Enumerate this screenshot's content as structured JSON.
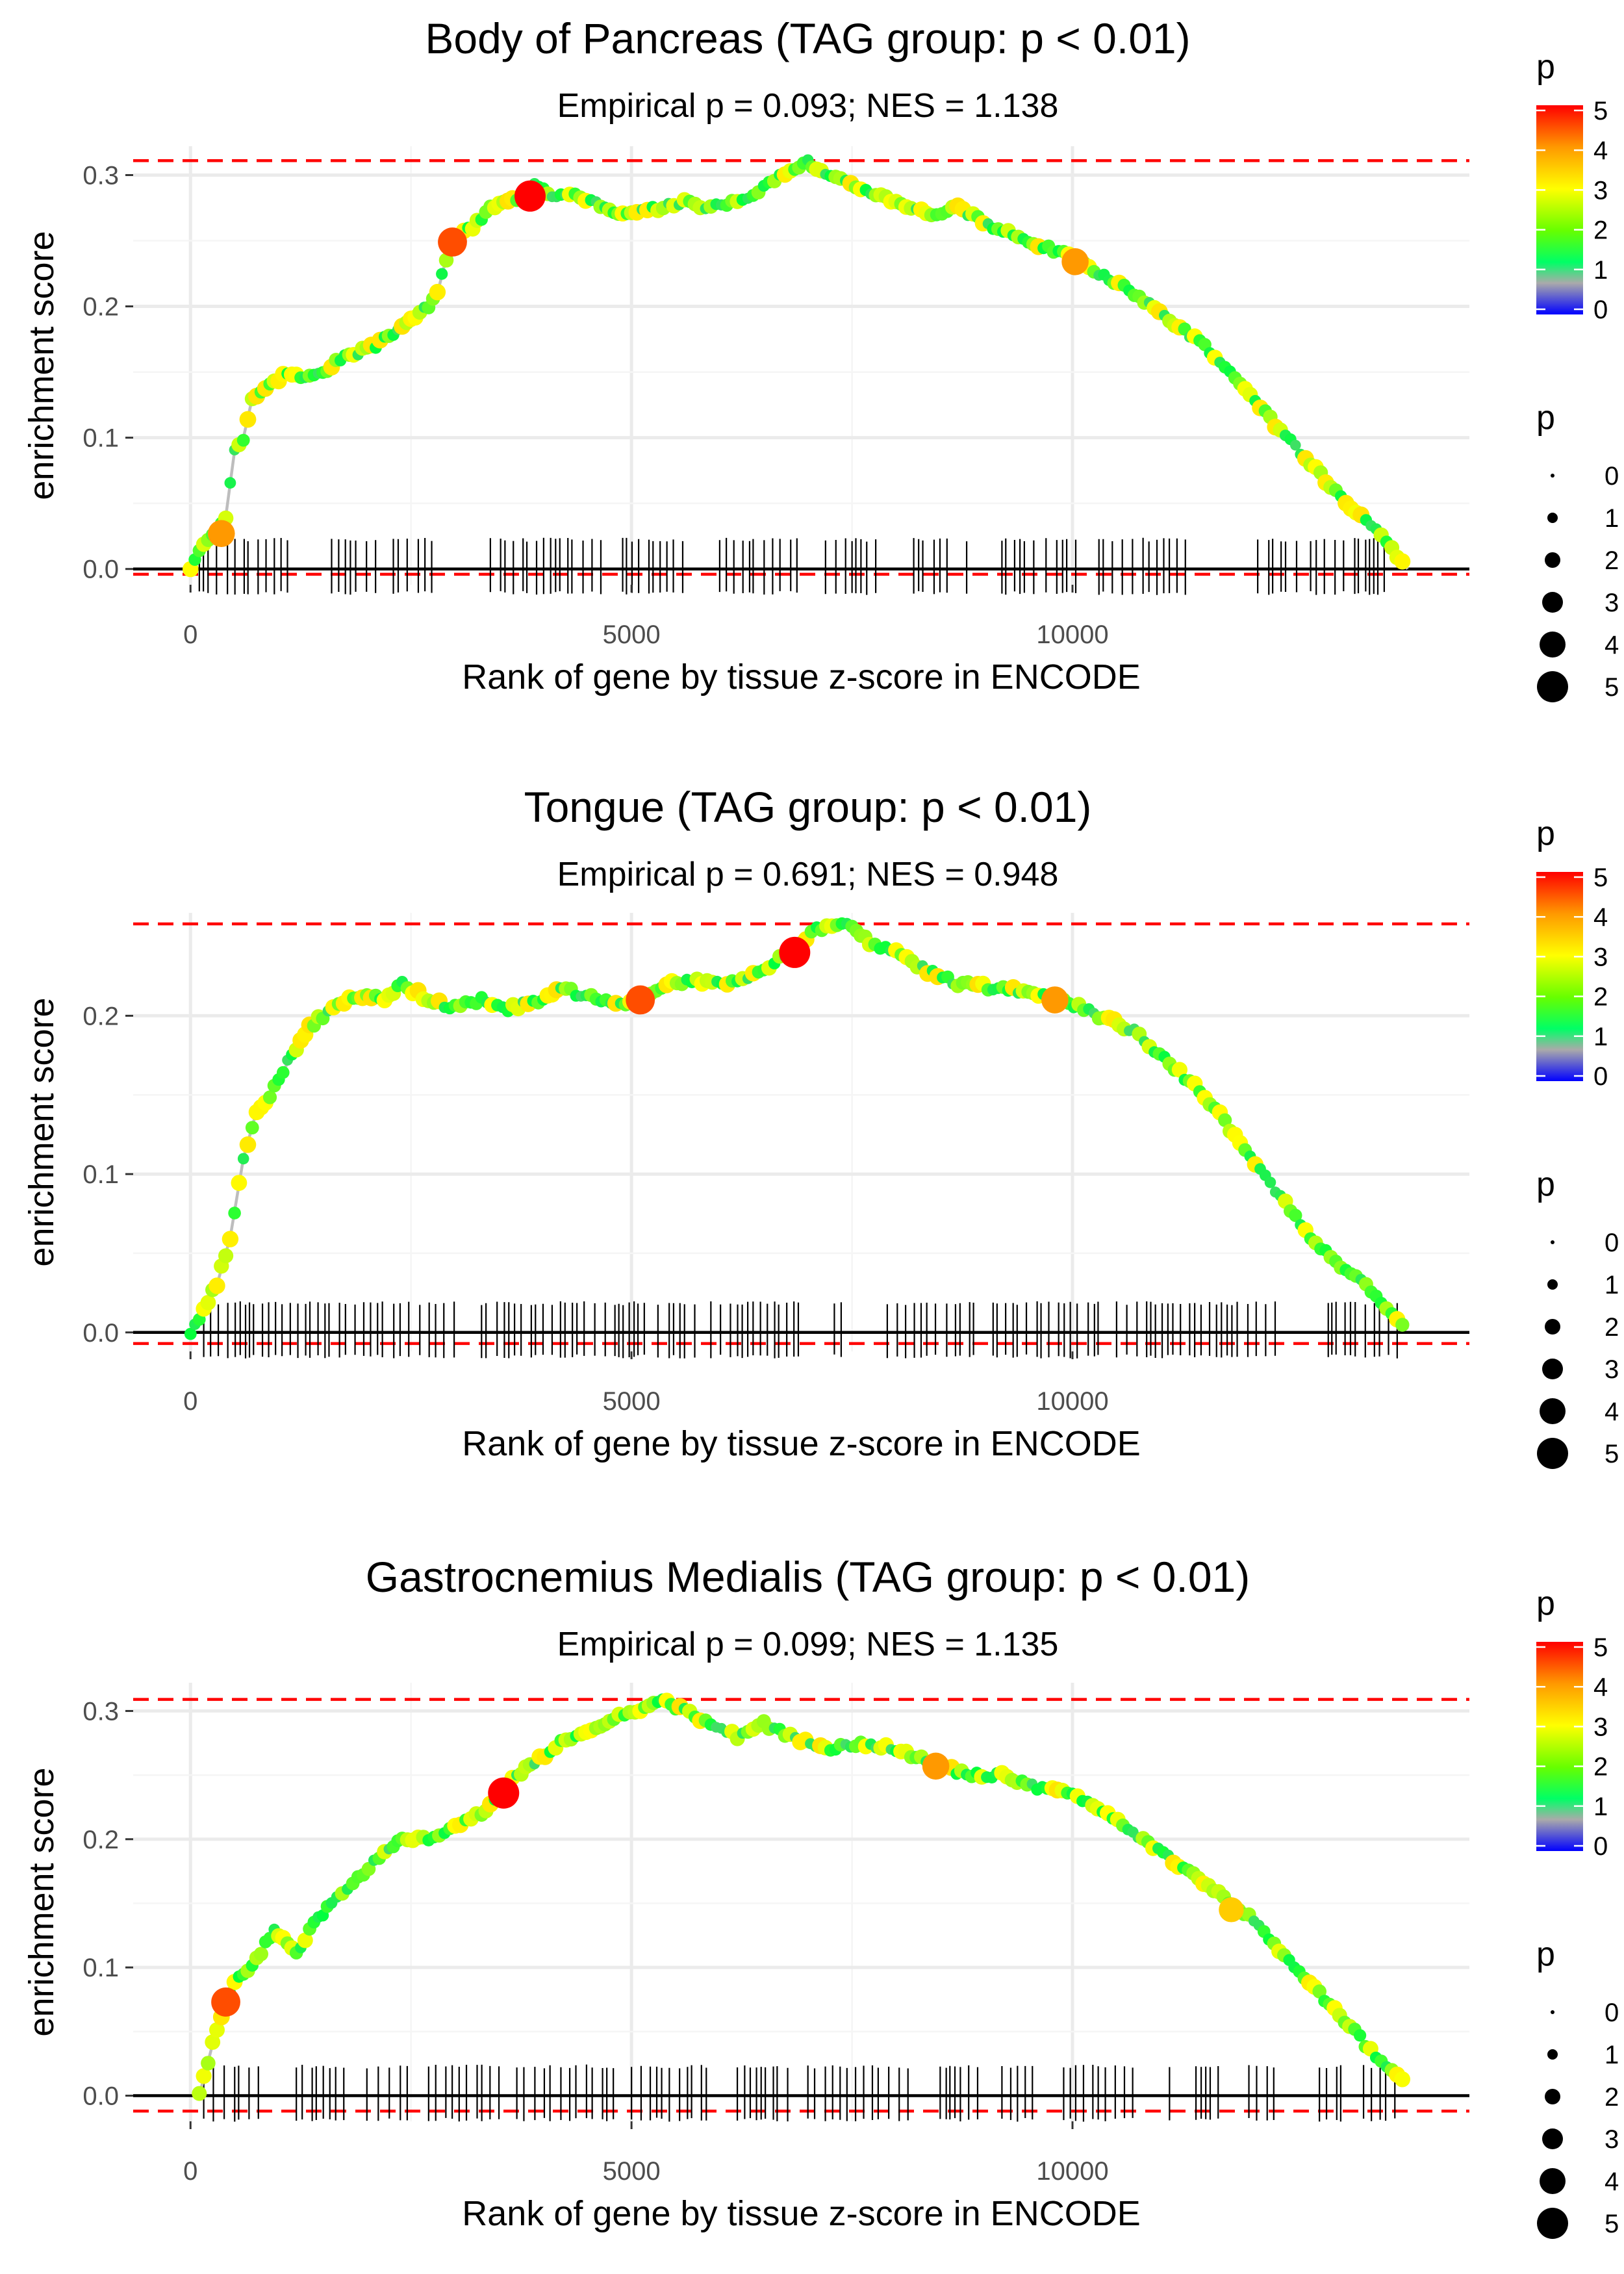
{
  "chart_data": [
    {
      "type": "line",
      "title": "Body of Pancreas (TAG group: p < 0.01)",
      "subtitle": "Empirical p = 0.093; NES = 1.138",
      "xlabel": "Rank of gene by tissue z-score in ENCODE",
      "ylabel": "enrichment score",
      "xlim": [
        -650,
        14500
      ],
      "ylim": [
        -0.012,
        0.322
      ],
      "xticks": [
        0,
        5000,
        10000
      ],
      "xtick_labels": [
        "0",
        "5000",
        "10000"
      ],
      "yticks": [
        0.0,
        0.1,
        0.2,
        0.3
      ],
      "ytick_labels": [
        "0.0",
        "0.1",
        "0.2",
        "0.3"
      ],
      "max_line": 0.311,
      "min_line": -0.004,
      "points": [
        [
          0,
          0
        ],
        [
          150,
          0.02
        ],
        [
          300,
          0.03
        ],
        [
          400,
          0.04
        ],
        [
          500,
          0.09
        ],
        [
          600,
          0.1
        ],
        [
          700,
          0.13
        ],
        [
          900,
          0.14
        ],
        [
          1100,
          0.15
        ],
        [
          1300,
          0.145
        ],
        [
          1500,
          0.15
        ],
        [
          1700,
          0.16
        ],
        [
          1900,
          0.165
        ],
        [
          2100,
          0.17
        ],
        [
          2300,
          0.18
        ],
        [
          2500,
          0.19
        ],
        [
          2700,
          0.2
        ],
        [
          2800,
          0.21
        ],
        [
          2950,
          0.25
        ],
        [
          3200,
          0.26
        ],
        [
          3400,
          0.275
        ],
        [
          3600,
          0.28
        ],
        [
          3800,
          0.285
        ],
        [
          3900,
          0.295
        ],
        [
          4100,
          0.285
        ],
        [
          4300,
          0.285
        ],
        [
          4600,
          0.28
        ],
        [
          4800,
          0.27
        ],
        [
          5000,
          0.27
        ],
        [
          5300,
          0.275
        ],
        [
          5600,
          0.28
        ],
        [
          5900,
          0.275
        ],
        [
          6200,
          0.28
        ],
        [
          6500,
          0.29
        ],
        [
          6800,
          0.305
        ],
        [
          7000,
          0.31
        ],
        [
          7200,
          0.3
        ],
        [
          7600,
          0.29
        ],
        [
          8000,
          0.28
        ],
        [
          8400,
          0.27
        ],
        [
          8700,
          0.275
        ],
        [
          9100,
          0.26
        ],
        [
          9500,
          0.25
        ],
        [
          9900,
          0.24
        ],
        [
          10300,
          0.225
        ],
        [
          10700,
          0.21
        ],
        [
          11100,
          0.19
        ],
        [
          11500,
          0.17
        ],
        [
          11900,
          0.14
        ],
        [
          12300,
          0.11
        ],
        [
          12700,
          0.08
        ],
        [
          13100,
          0.05
        ],
        [
          13500,
          0.025
        ],
        [
          13800,
          0
        ]
      ],
      "highlights": [
        [
          350,
          0.027,
          4
        ],
        [
          2970,
          0.249,
          4.5
        ],
        [
          3850,
          0.284,
          5
        ],
        [
          10030,
          0.234,
          4
        ]
      ],
      "rug": [
        [
          100,
          1150
        ],
        [
          1600,
          2200
        ],
        [
          2300,
          2800
        ],
        [
          3400,
          4700
        ],
        [
          4900,
          5700
        ],
        [
          6000,
          6900
        ],
        [
          7200,
          7800
        ],
        [
          8200,
          8600
        ],
        [
          8800,
          8900
        ],
        [
          9200,
          9600
        ],
        [
          9700,
          10100
        ],
        [
          10300,
          10700
        ],
        [
          10800,
          11300
        ],
        [
          12100,
          12600
        ],
        [
          12700,
          13100
        ],
        [
          13200,
          13600
        ]
      ]
    },
    {
      "type": "line",
      "title": "Tongue (TAG group: p < 0.01)",
      "subtitle": "Empirical p = 0.691; NES = 0.948",
      "xlabel": "Rank of gene by tissue z-score in ENCODE",
      "ylabel": "enrichment score",
      "xlim": [
        -650,
        14500
      ],
      "ylim": [
        -0.012,
        0.265
      ],
      "xticks": [
        0,
        5000,
        10000
      ],
      "xtick_labels": [
        "0",
        "5000",
        "10000"
      ],
      "yticks": [
        0.0,
        0.1,
        0.2
      ],
      "ytick_labels": [
        "0.0",
        "0.1",
        "0.2"
      ],
      "max_line": 0.258,
      "min_line": -0.007,
      "points": [
        [
          0,
          0
        ],
        [
          100,
          0.01
        ],
        [
          300,
          0.03
        ],
        [
          450,
          0.06
        ],
        [
          600,
          0.11
        ],
        [
          750,
          0.14
        ],
        [
          900,
          0.15
        ],
        [
          1100,
          0.17
        ],
        [
          1300,
          0.19
        ],
        [
          1500,
          0.2
        ],
        [
          1800,
          0.21
        ],
        [
          2000,
          0.212
        ],
        [
          2200,
          0.21
        ],
        [
          2400,
          0.22
        ],
        [
          2700,
          0.21
        ],
        [
          3000,
          0.205
        ],
        [
          3300,
          0.21
        ],
        [
          3600,
          0.205
        ],
        [
          4000,
          0.21
        ],
        [
          4200,
          0.218
        ],
        [
          4600,
          0.21
        ],
        [
          5100,
          0.208
        ],
        [
          5400,
          0.22
        ],
        [
          5800,
          0.222
        ],
        [
          6200,
          0.22
        ],
        [
          6500,
          0.23
        ],
        [
          6800,
          0.24
        ],
        [
          7100,
          0.255
        ],
        [
          7500,
          0.258
        ],
        [
          7700,
          0.245
        ],
        [
          8000,
          0.24
        ],
        [
          8300,
          0.23
        ],
        [
          8700,
          0.22
        ],
        [
          9100,
          0.218
        ],
        [
          9500,
          0.215
        ],
        [
          9900,
          0.21
        ],
        [
          10300,
          0.2
        ],
        [
          10700,
          0.19
        ],
        [
          11100,
          0.17
        ],
        [
          11500,
          0.15
        ],
        [
          11900,
          0.12
        ],
        [
          12300,
          0.09
        ],
        [
          12700,
          0.06
        ],
        [
          13100,
          0.04
        ],
        [
          13500,
          0.02
        ],
        [
          13800,
          0.002
        ]
      ],
      "highlights": [
        [
          5100,
          0.21,
          4.5
        ],
        [
          6850,
          0.24,
          5
        ],
        [
          9800,
          0.21,
          4
        ]
      ],
      "rug": [
        [
          150,
          2500
        ],
        [
          2600,
          3000
        ],
        [
          3300,
          4000
        ],
        [
          4100,
          5200
        ],
        [
          5300,
          5800
        ],
        [
          5900,
          7000
        ],
        [
          7300,
          7400
        ],
        [
          7900,
          8900
        ],
        [
          9100,
          10300
        ],
        [
          10500,
          12300
        ],
        [
          12900,
          13700
        ]
      ]
    },
    {
      "type": "line",
      "title": "Gastrocnemius Medialis (TAG group: p < 0.01)",
      "subtitle": "Empirical p = 0.099; NES = 1.135",
      "xlabel": "Rank of gene by tissue z-score in ENCODE",
      "ylabel": "enrichment score",
      "xlim": [
        -650,
        14500
      ],
      "ylim": [
        -0.02,
        0.322
      ],
      "xticks": [
        0,
        5000,
        10000
      ],
      "xtick_labels": [
        "0",
        "5000",
        "10000"
      ],
      "yticks": [
        0.0,
        0.1,
        0.2,
        0.3
      ],
      "ytick_labels": [
        "0.0",
        "0.1",
        "0.2",
        "0.3"
      ],
      "max_line": 0.309,
      "min_line": -0.012,
      "points": [
        [
          100,
          0
        ],
        [
          250,
          0.04
        ],
        [
          400,
          0.07
        ],
        [
          500,
          0.09
        ],
        [
          700,
          0.1
        ],
        [
          950,
          0.13
        ],
        [
          1200,
          0.11
        ],
        [
          1400,
          0.135
        ],
        [
          1600,
          0.15
        ],
        [
          1900,
          0.17
        ],
        [
          2200,
          0.19
        ],
        [
          2400,
          0.2
        ],
        [
          2700,
          0.2
        ],
        [
          3000,
          0.21
        ],
        [
          3300,
          0.22
        ],
        [
          3500,
          0.235
        ],
        [
          3700,
          0.25
        ],
        [
          3900,
          0.26
        ],
        [
          4200,
          0.275
        ],
        [
          4600,
          0.285
        ],
        [
          4800,
          0.295
        ],
        [
          5100,
          0.3
        ],
        [
          5350,
          0.308
        ],
        [
          5600,
          0.3
        ],
        [
          5900,
          0.29
        ],
        [
          6200,
          0.28
        ],
        [
          6500,
          0.29
        ],
        [
          6800,
          0.28
        ],
        [
          7200,
          0.27
        ],
        [
          7600,
          0.275
        ],
        [
          8000,
          0.27
        ],
        [
          8400,
          0.26
        ],
        [
          8800,
          0.25
        ],
        [
          9200,
          0.25
        ],
        [
          9600,
          0.24
        ],
        [
          10000,
          0.235
        ],
        [
          10400,
          0.22
        ],
        [
          10800,
          0.2
        ],
        [
          11200,
          0.18
        ],
        [
          11600,
          0.16
        ],
        [
          12000,
          0.14
        ],
        [
          12400,
          0.11
        ],
        [
          12800,
          0.08
        ],
        [
          13200,
          0.05
        ],
        [
          13500,
          0.025
        ],
        [
          13800,
          0.01
        ]
      ],
      "highlights": [
        [
          400,
          0.073,
          4.5
        ],
        [
          3550,
          0.236,
          5
        ],
        [
          8450,
          0.257,
          4
        ],
        [
          11800,
          0.145,
          3.5
        ]
      ],
      "rug": [
        [
          150,
          800
        ],
        [
          1200,
          1800
        ],
        [
          2000,
          2500
        ],
        [
          2700,
          3500
        ],
        [
          3700,
          4200
        ],
        [
          4300,
          4800
        ],
        [
          5000,
          5900
        ],
        [
          6200,
          6800
        ],
        [
          7000,
          8200
        ],
        [
          8500,
          9000
        ],
        [
          9200,
          9600
        ],
        [
          9900,
          10700
        ],
        [
          11100,
          11200
        ],
        [
          11400,
          11700
        ],
        [
          12000,
          12300
        ],
        [
          12800,
          13100
        ],
        [
          13300,
          13700
        ]
      ]
    }
  ],
  "legends": [
    {
      "color_title": "p",
      "color_ticks": [
        "5",
        "4",
        "3",
        "2",
        "1",
        "0"
      ],
      "colors": [
        "#ff0000",
        "#ff9900",
        "#ffff00",
        "#66ff00",
        "#00ff66",
        "#aaaaaa",
        "#0000ff"
      ],
      "size_title": "p",
      "size_labels": [
        "0",
        "1",
        "2",
        "3",
        "4",
        "5"
      ]
    },
    {
      "color_title": "p",
      "color_ticks": [
        "5",
        "4",
        "3",
        "2",
        "1",
        "0"
      ],
      "colors": [
        "#ff0000",
        "#ff9900",
        "#ffff00",
        "#66ff00",
        "#00ff66",
        "#aaaaaa",
        "#0000ff"
      ],
      "size_title": "p",
      "size_labels": [
        "0",
        "1",
        "2",
        "3",
        "4",
        "5"
      ]
    },
    {
      "color_title": "p",
      "color_ticks": [
        "5",
        "4",
        "3",
        "2",
        "1",
        "0"
      ],
      "colors": [
        "#ff0000",
        "#ff9900",
        "#ffff00",
        "#66ff00",
        "#00ff66",
        "#aaaaaa",
        "#0000ff"
      ],
      "size_title": "p",
      "size_labels": [
        "0",
        "1",
        "2",
        "3",
        "4",
        "5"
      ]
    }
  ]
}
